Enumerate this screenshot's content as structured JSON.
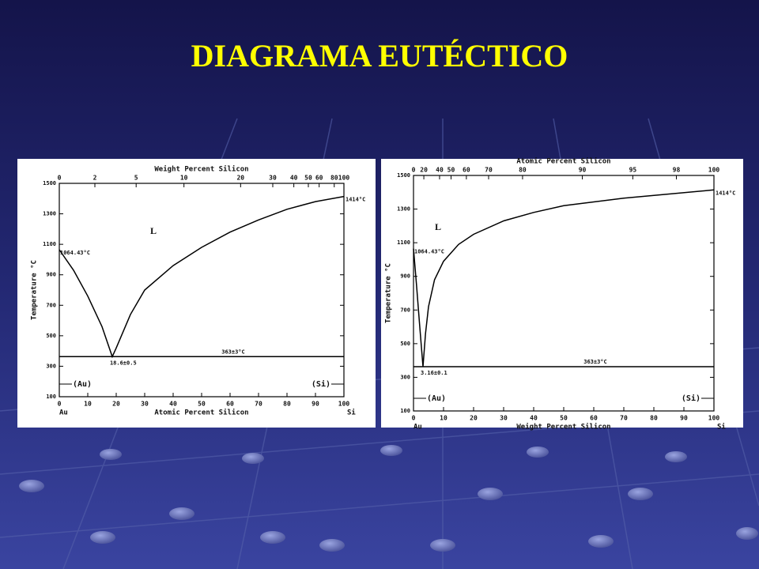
{
  "title": "DIAGRAMA EUTÉCTICO",
  "chart_data": [
    {
      "type": "line",
      "x_label": "Atomic Percent Silicon",
      "x2_label": "Weight Percent Silicon",
      "y_label": "Temperature °C",
      "xlim": [
        0,
        100
      ],
      "xticks": [
        0,
        10,
        20,
        30,
        40,
        50,
        60,
        70,
        80,
        90,
        100
      ],
      "x2ticks": [
        {
          "value": 0,
          "label": "0"
        },
        {
          "value": 12.5,
          "label": "2"
        },
        {
          "value": 27,
          "label": "5"
        },
        {
          "value": 43.8,
          "label": "10"
        },
        {
          "value": 63.7,
          "label": "20"
        },
        {
          "value": 75,
          "label": "30"
        },
        {
          "value": 82.4,
          "label": "40"
        },
        {
          "value": 87.5,
          "label": "50"
        },
        {
          "value": 91.3,
          "label": "60"
        },
        {
          "value": 96.6,
          "label": "80"
        },
        {
          "value": 100,
          "label": "100"
        }
      ],
      "ylim": [
        100,
        1500
      ],
      "yticks": [
        100,
        300,
        500,
        700,
        900,
        1100,
        1300,
        1500
      ],
      "x": [
        0,
        5,
        10,
        15,
        18.6,
        20,
        25,
        30,
        40,
        50,
        60,
        70,
        80,
        90,
        100
      ],
      "values": [
        1064.43,
        930,
        760,
        560,
        363,
        420,
        640,
        800,
        960,
        1080,
        1180,
        1260,
        1330,
        1380,
        1414
      ],
      "color": "#000000",
      "melting_points": [
        {
          "value": 1064.43,
          "label": "1064.43°C"
        },
        {
          "value": 1414,
          "label": "1414°C"
        }
      ],
      "eutectic_temp": {
        "value": 363,
        "label": "363±3°C"
      },
      "eutectic_composition": {
        "value": 18.6,
        "label": "18.6±0.5"
      },
      "phase_label": "L",
      "left_solid": "(Au)",
      "right_solid": "(Si)",
      "left_element": "Au",
      "right_element": "Si"
    },
    {
      "type": "line",
      "x_label": "Weight Percent Silicon",
      "x2_label": "Atomic Percent Silicon",
      "y_label": "Temperature °C",
      "xlim": [
        0,
        100
      ],
      "xticks": [
        0,
        10,
        20,
        30,
        40,
        50,
        60,
        70,
        80,
        90,
        100
      ],
      "x2ticks": [
        {
          "value": 0,
          "label": "0"
        },
        {
          "value": 3.44,
          "label": "20"
        },
        {
          "value": 8.68,
          "label": "40"
        },
        {
          "value": 12.5,
          "label": "50"
        },
        {
          "value": 17.6,
          "label": "60"
        },
        {
          "value": 25,
          "label": "70"
        },
        {
          "value": 36.3,
          "label": "80"
        },
        {
          "value": 56.2,
          "label": "90"
        },
        {
          "value": 73,
          "label": "95"
        },
        {
          "value": 87.5,
          "label": "98"
        },
        {
          "value": 100,
          "label": "100"
        }
      ],
      "ylim": [
        100,
        1500
      ],
      "yticks": [
        100,
        300,
        500,
        700,
        900,
        1100,
        1300,
        1500
      ],
      "x": [
        0,
        1,
        2,
        3.16,
        4,
        5,
        7,
        10,
        15,
        20,
        30,
        40,
        50,
        70,
        100
      ],
      "values": [
        1064.43,
        850,
        620,
        363,
        560,
        720,
        880,
        990,
        1090,
        1150,
        1230,
        1280,
        1320,
        1365,
        1414
      ],
      "color": "#000000",
      "melting_points": [
        {
          "value": 1064.43,
          "label": "1064.43°C"
        },
        {
          "value": 1414,
          "label": "1414°C"
        }
      ],
      "eutectic_temp": {
        "value": 363,
        "label": "363±3°C"
      },
      "eutectic_composition": {
        "value": 3.16,
        "label": "3.16±0.1"
      },
      "phase_label": "L",
      "left_solid": "(Au)",
      "right_solid": "(Si)",
      "left_element": "Au",
      "right_element": "Si"
    }
  ]
}
